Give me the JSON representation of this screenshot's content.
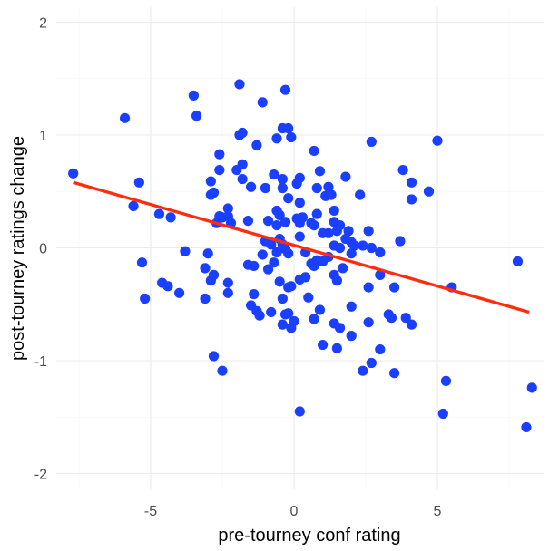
{
  "chart_data": {
    "type": "scatter",
    "title": "",
    "xlabel": "pre-tourney conf rating",
    "ylabel": "post-tourney ratings change",
    "xlim": [
      -8.2,
      8.5
    ],
    "ylim": [
      -2.1,
      2.1
    ],
    "x_ticks": [
      -5,
      0,
      5
    ],
    "x_tick_labels": [
      "-5",
      "0",
      "5"
    ],
    "y_ticks": [
      -2,
      -1,
      0,
      1,
      2
    ],
    "y_tick_labels": [
      "-2",
      "-1",
      "0",
      "1",
      "2"
    ],
    "grid": true,
    "point_color": "#1a3fff",
    "line_color": "#ff2d0f",
    "regression_line": {
      "x": [
        -7.7,
        8.2
      ],
      "y": [
        0.58,
        -0.57
      ]
    },
    "points": [
      [
        -7.7,
        0.66
      ],
      [
        -5.9,
        1.15
      ],
      [
        -5.4,
        0.58
      ],
      [
        -5.6,
        0.37
      ],
      [
        -5.3,
        -0.13
      ],
      [
        -5.2,
        -0.45
      ],
      [
        -4.7,
        0.3
      ],
      [
        -4.3,
        0.27
      ],
      [
        -4.6,
        -0.31
      ],
      [
        -4.4,
        -0.34
      ],
      [
        -4.0,
        -0.4
      ],
      [
        -3.8,
        -0.03
      ],
      [
        -3.5,
        1.35
      ],
      [
        -3.4,
        1.17
      ],
      [
        -3.1,
        -0.18
      ],
      [
        -3.0,
        -0.05
      ],
      [
        -3.1,
        -0.45
      ],
      [
        -2.9,
        -0.29
      ],
      [
        -2.8,
        -0.24
      ],
      [
        -2.8,
        -0.96
      ],
      [
        -2.5,
        -1.09
      ],
      [
        -2.6,
        0.83
      ],
      [
        -2.6,
        0.69
      ],
      [
        -2.9,
        0.59
      ],
      [
        -2.9,
        0.47
      ],
      [
        -2.8,
        0.49
      ],
      [
        -2.6,
        0.28
      ],
      [
        -2.7,
        0.22
      ],
      [
        -2.5,
        0.27
      ],
      [
        -2.3,
        0.35
      ],
      [
        -2.3,
        0.28
      ],
      [
        -2.2,
        0.22
      ],
      [
        -2.3,
        -0.31
      ],
      [
        -2.3,
        -0.4
      ],
      [
        -1.9,
        1.45
      ],
      [
        -1.9,
        1.0
      ],
      [
        -1.8,
        1.02
      ],
      [
        -2.0,
        0.69
      ],
      [
        -1.8,
        0.74
      ],
      [
        -1.8,
        0.61
      ],
      [
        -1.6,
        0.24
      ],
      [
        -1.5,
        0.54
      ],
      [
        -1.3,
        0.91
      ],
      [
        -1.1,
        1.29
      ],
      [
        -1.0,
        0.53
      ],
      [
        -0.9,
        0.24
      ],
      [
        -0.6,
        0.97
      ],
      [
        -0.3,
        1.4
      ],
      [
        -0.4,
        1.06
      ],
      [
        -0.2,
        1.06
      ],
      [
        -0.1,
        0.98
      ],
      [
        -0.7,
        0.65
      ],
      [
        -0.6,
        0.33
      ],
      [
        -0.5,
        0.29
      ],
      [
        -0.6,
        0.2
      ],
      [
        -0.4,
        0.61
      ],
      [
        -0.4,
        0.53
      ],
      [
        -0.3,
        0.23
      ],
      [
        -0.2,
        0.44
      ],
      [
        0.1,
        0.57
      ],
      [
        0.2,
        0.62
      ],
      [
        0.2,
        0.4
      ],
      [
        0.1,
        0.26
      ],
      [
        0.2,
        0.22
      ],
      [
        0.3,
        0.27
      ],
      [
        -1.6,
        -0.15
      ],
      [
        -1.4,
        -0.16
      ],
      [
        -1.1,
        -0.06
      ],
      [
        -1.0,
        0.06
      ],
      [
        -0.8,
        0.03
      ],
      [
        -0.6,
        -0.04
      ],
      [
        -0.5,
        0.08
      ],
      [
        -0.4,
        0.03
      ],
      [
        -0.3,
        -0.01
      ],
      [
        -0.2,
        -0.05
      ],
      [
        -0.7,
        -0.13
      ],
      [
        -0.9,
        -0.19
      ],
      [
        -0.5,
        -0.3
      ],
      [
        -0.4,
        -0.45
      ],
      [
        -0.2,
        -0.35
      ],
      [
        -0.1,
        -0.34
      ],
      [
        0.2,
        -0.28
      ],
      [
        0.4,
        -0.26
      ],
      [
        0.5,
        -0.44
      ],
      [
        0.6,
        -0.14
      ],
      [
        0.7,
        -0.16
      ],
      [
        0.2,
        0.1
      ],
      [
        0.4,
        -0.04
      ],
      [
        -1.4,
        -0.41
      ],
      [
        -1.5,
        -0.51
      ],
      [
        -1.3,
        -0.56
      ],
      [
        -1.2,
        -0.6
      ],
      [
        -0.8,
        -0.57
      ],
      [
        -0.3,
        -0.59
      ],
      [
        -0.4,
        -0.68
      ],
      [
        -0.2,
        -0.58
      ],
      [
        0.0,
        -0.65
      ],
      [
        -0.1,
        -0.71
      ],
      [
        0.2,
        -1.45
      ],
      [
        0.7,
        0.86
      ],
      [
        0.9,
        0.68
      ],
      [
        1.1,
        0.46
      ],
      [
        0.8,
        0.53
      ],
      [
        0.8,
        0.3
      ],
      [
        0.6,
        0.22
      ],
      [
        0.7,
        0.2
      ],
      [
        1.0,
        0.13
      ],
      [
        1.2,
        0.13
      ],
      [
        1.2,
        0.54
      ],
      [
        1.3,
        0.47
      ],
      [
        1.4,
        0.33
      ],
      [
        1.4,
        0.23
      ],
      [
        1.6,
        0.2
      ],
      [
        1.5,
        0.15
      ],
      [
        1.8,
        0.63
      ],
      [
        1.9,
        0.15
      ],
      [
        1.8,
        0.08
      ],
      [
        2.0,
        0.05
      ],
      [
        1.4,
        0.02
      ],
      [
        1.6,
        0.0
      ],
      [
        2.1,
        0.02
      ],
      [
        2.4,
        0.02
      ],
      [
        1.2,
        -0.08
      ],
      [
        1.0,
        -0.12
      ],
      [
        0.8,
        -0.11
      ],
      [
        1.4,
        -0.24
      ],
      [
        1.5,
        -0.29
      ],
      [
        1.7,
        -0.18
      ],
      [
        2.0,
        -0.05
      ],
      [
        2.3,
        0.47
      ],
      [
        2.6,
        0.15
      ],
      [
        2.7,
        0.0
      ],
      [
        3.0,
        -0.04
      ],
      [
        3.0,
        -0.24
      ],
      [
        2.6,
        -0.35
      ],
      [
        2.7,
        0.94
      ],
      [
        0.9,
        -0.55
      ],
      [
        1.4,
        -0.67
      ],
      [
        1.6,
        -0.71
      ],
      [
        2.0,
        -0.52
      ],
      [
        1.0,
        -0.86
      ],
      [
        1.5,
        -0.89
      ],
      [
        2.0,
        -0.78
      ],
      [
        0.7,
        -0.63
      ],
      [
        2.6,
        -0.66
      ],
      [
        3.3,
        -0.59
      ],
      [
        3.4,
        -0.62
      ],
      [
        3.5,
        -0.35
      ],
      [
        3.9,
        -0.62
      ],
      [
        4.1,
        -0.68
      ],
      [
        3.0,
        -0.9
      ],
      [
        2.7,
        -1.02
      ],
      [
        2.4,
        -1.09
      ],
      [
        3.5,
        -1.11
      ],
      [
        3.8,
        0.69
      ],
      [
        4.1,
        0.58
      ],
      [
        4.1,
        0.43
      ],
      [
        3.7,
        0.06
      ],
      [
        4.7,
        0.5
      ],
      [
        5.0,
        0.95
      ],
      [
        5.5,
        -0.35
      ],
      [
        5.3,
        -1.18
      ],
      [
        5.2,
        -1.47
      ],
      [
        7.8,
        -0.12
      ],
      [
        8.3,
        -1.24
      ],
      [
        8.1,
        -1.59
      ]
    ]
  }
}
